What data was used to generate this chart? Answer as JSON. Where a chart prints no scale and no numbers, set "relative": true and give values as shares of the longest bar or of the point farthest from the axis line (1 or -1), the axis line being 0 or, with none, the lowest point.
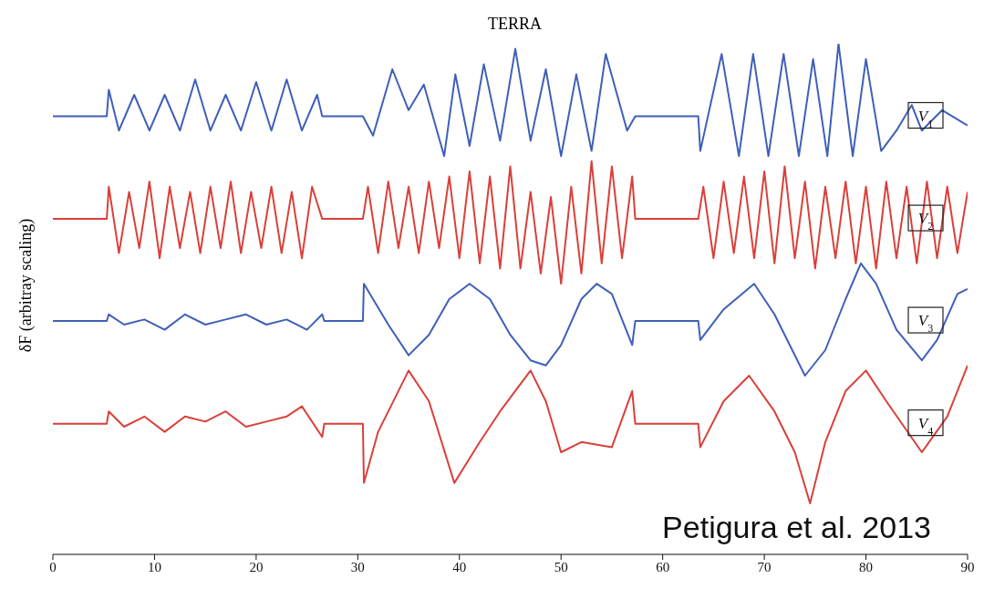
{
  "chart_data": {
    "type": "line",
    "relative": true,
    "title": "TERRA",
    "ylabel": "δF (arbitray scaling)",
    "xlim": [
      0,
      90
    ],
    "xticks": [
      0,
      10,
      20,
      30,
      40,
      50,
      60,
      70,
      80,
      90
    ],
    "marker": "none",
    "annotations": [
      "Petigura et al. 2013"
    ],
    "series": [
      {
        "name": "V$_{1}$",
        "color": "#3f5fb8",
        "x": [
          0,
          5.3,
          5.5,
          6.5,
          8,
          9.5,
          11,
          12.5,
          14,
          15.5,
          17,
          18.5,
          20,
          21.5,
          23,
          24.5,
          26,
          26.5,
          30.5,
          31.5,
          33.4,
          35,
          36.5,
          38.5,
          39.6,
          41,
          42.4,
          44,
          45.5,
          47,
          48.5,
          50,
          51.5,
          53,
          54.4,
          56.5,
          57.3,
          63.5,
          63.7,
          65.8,
          67.5,
          68.9,
          70.4,
          71.9,
          73.4,
          74.8,
          76.2,
          77.3,
          78.7,
          80,
          81.5,
          83,
          84.5,
          85.5,
          87.5,
          90
        ],
        "values": [
          0.858,
          0.858,
          0.91,
          0.83,
          0.9,
          0.83,
          0.9,
          0.83,
          0.93,
          0.83,
          0.9,
          0.83,
          0.925,
          0.83,
          0.93,
          0.83,
          0.9,
          0.858,
          0.858,
          0.82,
          0.95,
          0.87,
          0.92,
          0.78,
          0.94,
          0.8,
          0.96,
          0.81,
          0.99,
          0.81,
          0.95,
          0.78,
          0.94,
          0.79,
          0.98,
          0.83,
          0.858,
          0.858,
          0.79,
          0.98,
          0.78,
          0.98,
          0.78,
          0.98,
          0.78,
          0.97,
          0.78,
          1,
          0.78,
          0.97,
          0.79,
          0.83,
          0.88,
          0.83,
          0.87,
          0.84
        ]
      },
      {
        "name": "V$_{2}$",
        "color": "#d9403a",
        "x": [
          0,
          5.3,
          5.5,
          6.5,
          7.5,
          8.5,
          9.5,
          10.5,
          11.5,
          12.5,
          13.5,
          14.5,
          15.5,
          16.5,
          17.5,
          18.5,
          19.5,
          20.5,
          21.5,
          22.5,
          23.5,
          24.5,
          25.5,
          26.5,
          30.5,
          31,
          32,
          33,
          34,
          35,
          36,
          37,
          38,
          39,
          40,
          41,
          42,
          43,
          44,
          45,
          46,
          47,
          48,
          49,
          50,
          51,
          52,
          53,
          54,
          55,
          56,
          57,
          57.3,
          63.5,
          64,
          65,
          66,
          67,
          68,
          69,
          70,
          71,
          72,
          73,
          74,
          75,
          76,
          77,
          78,
          79,
          80,
          81,
          82,
          83,
          84,
          85,
          86,
          87,
          88,
          89,
          90
        ],
        "values": [
          0.657,
          0.657,
          0.72,
          0.59,
          0.71,
          0.6,
          0.73,
          0.58,
          0.72,
          0.6,
          0.71,
          0.59,
          0.72,
          0.6,
          0.73,
          0.59,
          0.71,
          0.6,
          0.72,
          0.59,
          0.71,
          0.58,
          0.72,
          0.657,
          0.657,
          0.72,
          0.59,
          0.73,
          0.6,
          0.72,
          0.59,
          0.73,
          0.6,
          0.74,
          0.58,
          0.75,
          0.57,
          0.74,
          0.56,
          0.76,
          0.56,
          0.71,
          0.55,
          0.7,
          0.53,
          0.72,
          0.55,
          0.77,
          0.57,
          0.76,
          0.58,
          0.74,
          0.657,
          0.657,
          0.72,
          0.58,
          0.73,
          0.59,
          0.74,
          0.58,
          0.75,
          0.57,
          0.76,
          0.58,
          0.73,
          0.56,
          0.72,
          0.58,
          0.73,
          0.57,
          0.72,
          0.56,
          0.73,
          0.58,
          0.72,
          0.57,
          0.73,
          0.58,
          0.72,
          0.59,
          0.71
        ]
      },
      {
        "name": "V$_{3}$",
        "color": "#3f5fb8",
        "x": [
          0,
          5.3,
          5.5,
          7,
          9,
          11,
          13,
          15,
          17,
          19,
          21,
          23,
          25,
          26.5,
          26.7,
          30.5,
          30.6,
          33,
          35,
          37,
          39,
          41,
          43,
          45,
          47,
          48.5,
          50,
          52,
          53.5,
          55,
          57,
          57.3,
          63.5,
          63.7,
          66,
          69,
          71,
          74,
          76,
          78,
          79.5,
          81,
          83,
          85.5,
          87,
          89,
          90
        ],
        "values": [
          0.457,
          0.457,
          0.47,
          0.45,
          0.46,
          0.44,
          0.47,
          0.45,
          0.46,
          0.47,
          0.45,
          0.46,
          0.44,
          0.47,
          0.457,
          0.457,
          0.53,
          0.45,
          0.39,
          0.43,
          0.5,
          0.53,
          0.5,
          0.43,
          0.38,
          0.37,
          0.41,
          0.5,
          0.53,
          0.51,
          0.41,
          0.457,
          0.457,
          0.42,
          0.48,
          0.53,
          0.47,
          0.35,
          0.4,
          0.5,
          0.57,
          0.53,
          0.44,
          0.38,
          0.42,
          0.51,
          0.52
        ]
      },
      {
        "name": "V$_{4}$",
        "color": "#d9403a",
        "x": [
          0,
          5.3,
          5.5,
          7,
          9,
          11,
          13,
          15,
          17,
          19,
          21,
          23,
          24.5,
          26.5,
          26.7,
          30.5,
          30.6,
          32,
          35,
          37,
          39.5,
          42,
          44,
          47,
          48.5,
          50,
          52,
          55,
          57,
          57.3,
          63.5,
          63.7,
          66,
          68.5,
          71,
          73,
          74.5,
          76,
          78,
          80,
          82,
          85.5,
          88,
          90
        ],
        "values": [
          0.256,
          0.256,
          0.28,
          0.25,
          0.27,
          0.24,
          0.27,
          0.26,
          0.28,
          0.25,
          0.26,
          0.27,
          0.29,
          0.23,
          0.256,
          0.256,
          0.14,
          0.24,
          0.36,
          0.3,
          0.14,
          0.22,
          0.28,
          0.36,
          0.3,
          0.2,
          0.22,
          0.21,
          0.32,
          0.256,
          0.256,
          0.21,
          0.3,
          0.35,
          0.28,
          0.2,
          0.1,
          0.22,
          0.32,
          0.36,
          0.3,
          0.2,
          0.27,
          0.37
        ]
      }
    ]
  }
}
